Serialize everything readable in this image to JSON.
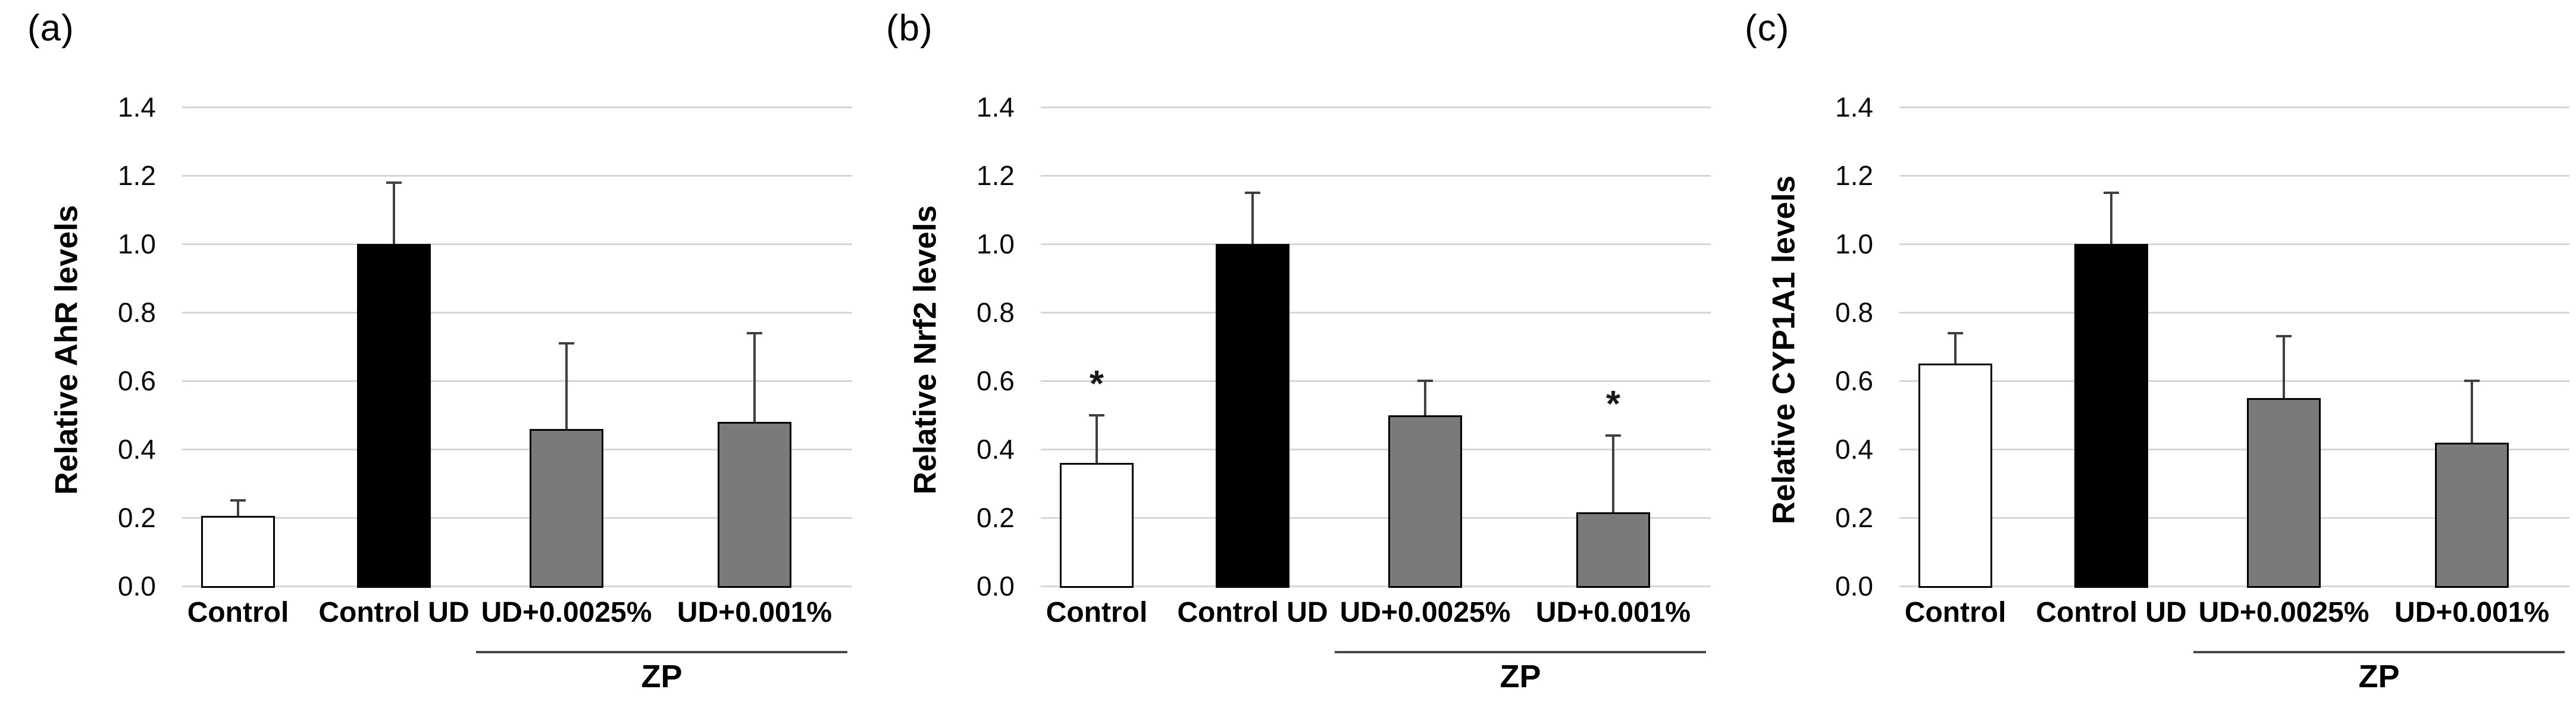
{
  "figure": {
    "background": "#ffffff",
    "gridline_color": "#d6d6d6",
    "error_bar_color": "#404040",
    "bar_border_color": "#000000",
    "group_line_color": "#4a4a4a"
  },
  "chart_data": [
    {
      "type": "bar",
      "panel_label": "(a)",
      "title": "",
      "xlabel": "",
      "ylabel": "Relative AhR levels",
      "ylim": [
        0.0,
        1.4
      ],
      "yticks": [
        "0.0",
        "0.2",
        "0.4",
        "0.6",
        "0.8",
        "1.0",
        "1.2",
        "1.4"
      ],
      "grid": true,
      "legend": false,
      "categories": [
        "Control",
        "Control UD",
        "UD+0.0025%",
        "UD+0.001%"
      ],
      "values": [
        0.205,
        1.0,
        0.46,
        0.48
      ],
      "errors_up": [
        0.045,
        0.18,
        0.25,
        0.26
      ],
      "significance": [
        "",
        "",
        "",
        ""
      ],
      "bar_colors": [
        "#ffffff",
        "#000000",
        "#7a7a7a",
        "#7a7a7a"
      ],
      "group_annotation": {
        "label": "ZP",
        "categories": [
          "UD+0.0025%",
          "UD+0.001%"
        ]
      }
    },
    {
      "type": "bar",
      "panel_label": "(b)",
      "title": "",
      "xlabel": "",
      "ylabel": "Relative Nrf2 levels",
      "ylim": [
        0.0,
        1.4
      ],
      "yticks": [
        "0.0",
        "0.2",
        "0.4",
        "0.6",
        "0.8",
        "1.0",
        "1.2",
        "1.4"
      ],
      "grid": true,
      "legend": false,
      "categories": [
        "Control",
        "Control UD",
        "UD+0.0025%",
        "UD+0.001%"
      ],
      "values": [
        0.36,
        1.0,
        0.5,
        0.215
      ],
      "errors_up": [
        0.14,
        0.15,
        0.1,
        0.225
      ],
      "significance": [
        "*",
        "",
        "",
        "*"
      ],
      "bar_colors": [
        "#ffffff",
        "#000000",
        "#7a7a7a",
        "#7a7a7a"
      ],
      "group_annotation": {
        "label": "ZP",
        "categories": [
          "UD+0.0025%",
          "UD+0.001%"
        ]
      }
    },
    {
      "type": "bar",
      "panel_label": "(c)",
      "title": "",
      "xlabel": "",
      "ylabel": "Relative CYP1A1 levels",
      "ylim": [
        0.0,
        1.4
      ],
      "yticks": [
        "0.0",
        "0.2",
        "0.4",
        "0.6",
        "0.8",
        "1.0",
        "1.2",
        "1.4"
      ],
      "grid": true,
      "legend": false,
      "categories": [
        "Control",
        "Control UD",
        "UD+0.0025%",
        "UD+0.001%"
      ],
      "values": [
        0.65,
        1.0,
        0.55,
        0.42
      ],
      "errors_up": [
        0.09,
        0.15,
        0.18,
        0.18
      ],
      "significance": [
        "",
        "",
        "",
        ""
      ],
      "bar_colors": [
        "#ffffff",
        "#000000",
        "#7a7a7a",
        "#7a7a7a"
      ],
      "group_annotation": {
        "label": "ZP",
        "categories": [
          "UD+0.0025%",
          "UD+0.001%"
        ]
      }
    }
  ]
}
